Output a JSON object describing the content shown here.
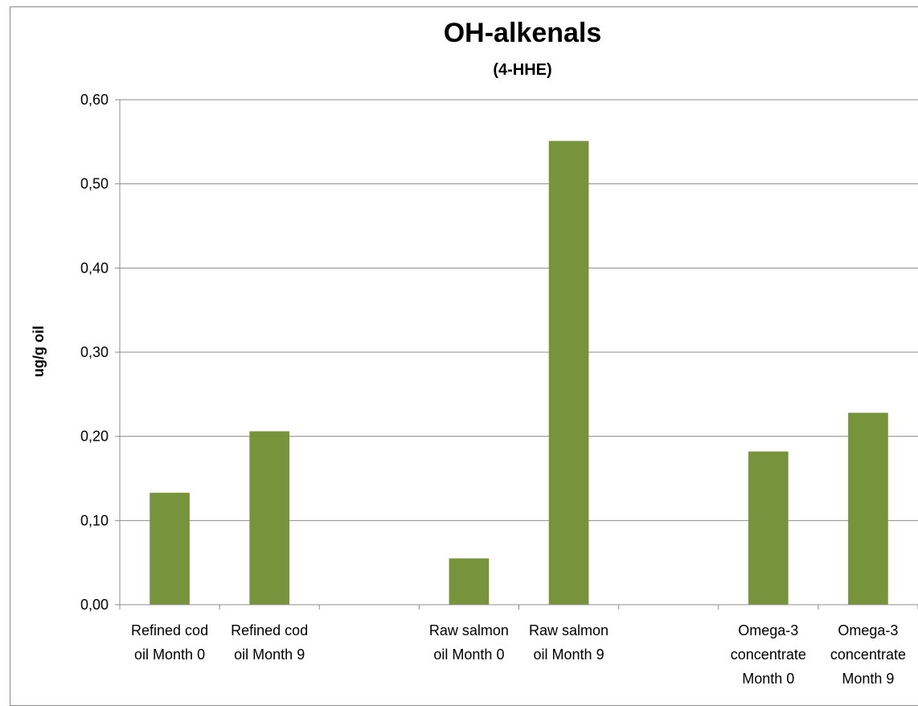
{
  "chart_data": {
    "type": "bar",
    "title": "OH-alkenals",
    "subtitle": "(4-HHE)",
    "xlabel": "",
    "ylabel": "ug/g oil",
    "ylim": [
      0,
      0.6
    ],
    "yticks": [
      "0,00",
      "0,10",
      "0,20",
      "0,30",
      "0,40",
      "0,50",
      "0,60"
    ],
    "categories": [
      [
        "Refined cod",
        "oil Month 0"
      ],
      [
        "Refined cod",
        "oil Month 9"
      ],
      [],
      [
        "Raw salmon",
        "oil Month 0"
      ],
      [
        "Raw salmon",
        "oil Month 9"
      ],
      [],
      [
        "Omega-3",
        "concentrate",
        "Month 0"
      ],
      [
        "Omega-3",
        "concentrate",
        "Month 9"
      ]
    ],
    "values": [
      0.133,
      0.206,
      null,
      0.055,
      0.551,
      null,
      0.182,
      0.228
    ],
    "bar_color": "#77933c",
    "grid": true,
    "legend": "none"
  }
}
